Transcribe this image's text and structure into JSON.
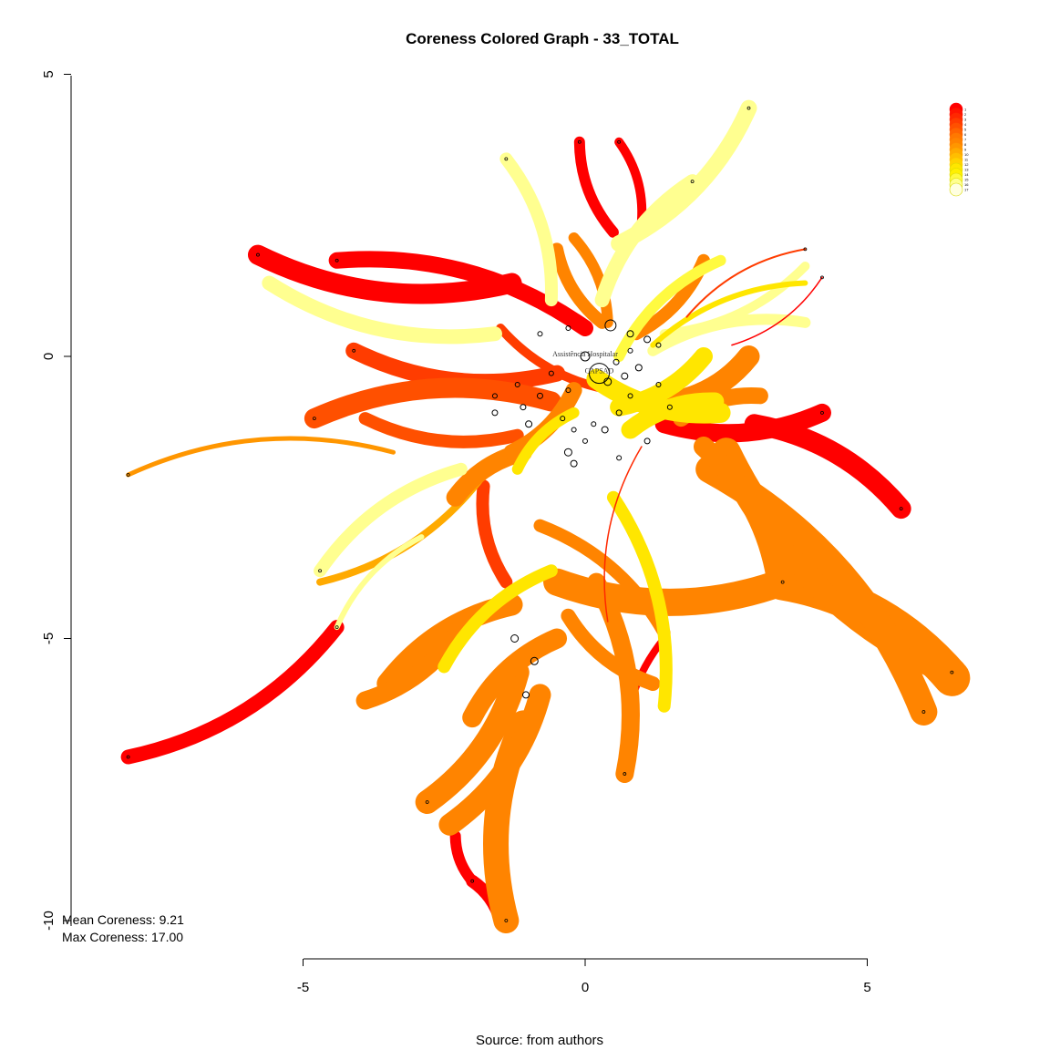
{
  "chart_data": {
    "type": "network",
    "title": "Coreness Colored Graph - 33_TOTAL",
    "caption": "Source: from authors",
    "xlim": [
      -5,
      5
    ],
    "ylim": [
      -10,
      5
    ],
    "x_ticks": [
      -5,
      0,
      5
    ],
    "y_ticks": [
      5,
      0,
      -5,
      -10
    ],
    "stats": {
      "mean_label": "Mean Coreness: 9.21",
      "max_label": "Max Coreness: 17.00",
      "mean_coreness": 9.21,
      "max_coreness": 17.0
    },
    "legend": {
      "placement": "top-right",
      "levels": [
        "1",
        "2",
        "3",
        "4",
        "5",
        "6",
        "7",
        "8",
        "9",
        "10",
        "11",
        "12",
        "13",
        "14",
        "15",
        "16",
        "17"
      ],
      "colors": [
        "#ff0000",
        "#ff1400",
        "#ff2800",
        "#ff3c00",
        "#ff5000",
        "#ff6400",
        "#ff7800",
        "#ff8400",
        "#ff9600",
        "#ffaa00",
        "#ffbe00",
        "#ffd200",
        "#ffe600",
        "#fff000",
        "#fffa40",
        "#ffff90",
        "#ffffe0"
      ]
    },
    "node_labels": [
      {
        "text": "CAPSAD",
        "x": 0.25,
        "y": -0.3
      },
      {
        "text": "Assistência Hospitalar",
        "x": 0.0,
        "y": 0.0
      }
    ],
    "edges": [
      {
        "from": [
          -5.8,
          1.8
        ],
        "to": [
          -1.3,
          1.3
        ],
        "width": 22,
        "coreness": 1
      },
      {
        "from": [
          -4.4,
          1.7
        ],
        "to": [
          0.0,
          0.5
        ],
        "width": 18,
        "coreness": 1
      },
      {
        "from": [
          -0.1,
          3.8
        ],
        "to": [
          0.5,
          2.2
        ],
        "width": 12,
        "coreness": 1
      },
      {
        "from": [
          0.6,
          3.8
        ],
        "to": [
          1.0,
          2.4
        ],
        "width": 10,
        "coreness": 1
      },
      {
        "from": [
          -8.1,
          -7.1
        ],
        "to": [
          -4.4,
          -4.8
        ],
        "width": 16,
        "coreness": 1
      },
      {
        "from": [
          4.2,
          -1.0
        ],
        "to": [
          1.4,
          -1.2
        ],
        "width": 20,
        "coreness": 1
      },
      {
        "from": [
          5.6,
          -2.7
        ],
        "to": [
          3.0,
          -1.2
        ],
        "width": 22,
        "coreness": 1
      },
      {
        "from": [
          -2.0,
          -9.3
        ],
        "to": [
          -1.5,
          -10.0
        ],
        "width": 14,
        "coreness": 1
      },
      {
        "from": [
          -2.3,
          -8.5
        ],
        "to": [
          -2.0,
          -9.3
        ],
        "width": 12,
        "coreness": 1
      },
      {
        "from": [
          0.7,
          -7.0
        ],
        "to": [
          1.4,
          -5.0
        ],
        "width": 8,
        "coreness": 1
      },
      {
        "from": [
          -4.1,
          0.1
        ],
        "to": [
          -0.5,
          -0.3
        ],
        "width": 18,
        "coreness": 4
      },
      {
        "from": [
          -4.8,
          -1.1
        ],
        "to": [
          -0.6,
          -0.8
        ],
        "width": 22,
        "coreness": 5
      },
      {
        "from": [
          -3.9,
          -1.1
        ],
        "to": [
          -1.2,
          -1.4
        ],
        "width": 14,
        "coreness": 5
      },
      {
        "from": [
          -1.4,
          -4.0
        ],
        "to": [
          -1.8,
          -2.3
        ],
        "width": 14,
        "coreness": 4
      },
      {
        "from": [
          -1.5,
          0.5
        ],
        "to": [
          0.5,
          -0.6
        ],
        "width": 10,
        "coreness": 4
      },
      {
        "from": [
          -8.1,
          -2.1
        ],
        "to": [
          -3.4,
          -1.7
        ],
        "width": 5,
        "coreness": 9
      },
      {
        "from": [
          -4.7,
          -4.0
        ],
        "to": [
          -1.8,
          -2.1
        ],
        "width": 8,
        "coreness": 10
      },
      {
        "from": [
          -4.4,
          -4.8
        ],
        "to": [
          -2.9,
          -3.2
        ],
        "width": 6,
        "coreness": 16
      },
      {
        "from": [
          6.5,
          -5.7
        ],
        "to": [
          3.5,
          -4.0
        ],
        "width": 40,
        "coreness": 8
      },
      {
        "from": [
          6.5,
          -5.6
        ],
        "to": [
          2.5,
          -1.7
        ],
        "width": 32,
        "coreness": 8
      },
      {
        "from": [
          6.0,
          -6.3
        ],
        "to": [
          2.2,
          -2.0
        ],
        "width": 30,
        "coreness": 8
      },
      {
        "from": [
          3.5,
          -4.0
        ],
        "to": [
          -0.5,
          -4.0
        ],
        "width": 30,
        "coreness": 8
      },
      {
        "from": [
          -2.8,
          -7.9
        ],
        "to": [
          -1.2,
          -5.6
        ],
        "width": 26,
        "coreness": 8
      },
      {
        "from": [
          -1.4,
          -10.0
        ],
        "to": [
          -1.1,
          -6.5
        ],
        "width": 28,
        "coreness": 8
      },
      {
        "from": [
          -2.4,
          -8.3
        ],
        "to": [
          -0.8,
          -6.0
        ],
        "width": 24,
        "coreness": 8
      },
      {
        "from": [
          -3.5,
          -5.8
        ],
        "to": [
          -1.3,
          -4.4
        ],
        "width": 24,
        "coreness": 8
      },
      {
        "from": [
          -3.9,
          -6.1
        ],
        "to": [
          -2.2,
          -4.8
        ],
        "width": 20,
        "coreness": 8
      },
      {
        "from": [
          -2.0,
          -6.4
        ],
        "to": [
          -0.5,
          -5.0
        ],
        "width": 22,
        "coreness": 8
      },
      {
        "from": [
          0.7,
          -7.4
        ],
        "to": [
          0.2,
          -4.0
        ],
        "width": 20,
        "coreness": 8
      },
      {
        "from": [
          1.2,
          -5.8
        ],
        "to": [
          -0.3,
          -4.6
        ],
        "width": 16,
        "coreness": 8
      },
      {
        "from": [
          1.4,
          -4.9
        ],
        "to": [
          -0.8,
          -3.0
        ],
        "width": 14,
        "coreness": 8
      },
      {
        "from": [
          -2.3,
          -2.5
        ],
        "to": [
          -1.1,
          -1.7
        ],
        "width": 20,
        "coreness": 8
      },
      {
        "from": [
          3.4,
          -4.0
        ],
        "to": [
          2.1,
          -1.6
        ],
        "width": 22,
        "coreness": 8
      },
      {
        "from": [
          2.9,
          0.0
        ],
        "to": [
          1.6,
          -0.8
        ],
        "width": 24,
        "coreness": 8
      },
      {
        "from": [
          3.1,
          -0.7
        ],
        "to": [
          1.7,
          -1.1
        ],
        "width": 18,
        "coreness": 8
      },
      {
        "from": [
          2.1,
          1.7
        ],
        "to": [
          0.9,
          0.4
        ],
        "width": 14,
        "coreness": 8
      },
      {
        "from": [
          -0.5,
          1.9
        ],
        "to": [
          0.3,
          0.6
        ],
        "width": 14,
        "coreness": 8
      },
      {
        "from": [
          -0.2,
          2.1
        ],
        "to": [
          0.4,
          0.6
        ],
        "width": 12,
        "coreness": 8
      },
      {
        "from": [
          -1.3,
          -1.7
        ],
        "to": [
          -0.2,
          -0.6
        ],
        "width": 18,
        "coreness": 8
      },
      {
        "from": [
          2.9,
          4.4
        ],
        "to": [
          0.6,
          2.0
        ],
        "width": 18,
        "coreness": 16
      },
      {
        "from": [
          1.9,
          3.1
        ],
        "to": [
          0.3,
          1.0
        ],
        "width": 16,
        "coreness": 16
      },
      {
        "from": [
          -1.4,
          3.5
        ],
        "to": [
          -0.6,
          1.0
        ],
        "width": 14,
        "coreness": 16
      },
      {
        "from": [
          -5.6,
          1.3
        ],
        "to": [
          -1.6,
          0.4
        ],
        "width": 16,
        "coreness": 16
      },
      {
        "from": [
          -4.7,
          -3.8
        ],
        "to": [
          -2.2,
          -2.0
        ],
        "width": 14,
        "coreness": 16
      },
      {
        "from": [
          3.9,
          0.6
        ],
        "to": [
          1.2,
          0.1
        ],
        "width": 12,
        "coreness": 16
      },
      {
        "from": [
          3.9,
          1.6
        ],
        "to": [
          1.4,
          0.4
        ],
        "width": 10,
        "coreness": 16
      },
      {
        "from": [
          2.4,
          1.7
        ],
        "to": [
          0.6,
          0.0
        ],
        "width": 12,
        "coreness": 15
      },
      {
        "from": [
          2.4,
          -1.0
        ],
        "to": [
          0.2,
          -0.4
        ],
        "width": 22,
        "coreness": 13
      },
      {
        "from": [
          2.3,
          -0.8
        ],
        "to": [
          0.8,
          -1.3
        ],
        "width": 20,
        "coreness": 13
      },
      {
        "from": [
          2.1,
          0.0
        ],
        "to": [
          0.6,
          -0.9
        ],
        "width": 20,
        "coreness": 13
      },
      {
        "from": [
          1.4,
          -6.2
        ],
        "to": [
          0.5,
          -2.5
        ],
        "width": 14,
        "coreness": 13
      },
      {
        "from": [
          -2.5,
          -5.5
        ],
        "to": [
          -0.6,
          -3.8
        ],
        "width": 14,
        "coreness": 13
      },
      {
        "from": [
          3.9,
          1.3
        ],
        "to": [
          1.2,
          0.2
        ],
        "width": 6,
        "coreness": 13
      },
      {
        "from": [
          -1.2,
          -2.0
        ],
        "to": [
          -0.2,
          -1.0
        ],
        "width": 12,
        "coreness": 13
      },
      {
        "from": [
          3.9,
          1.9
        ],
        "to": [
          1.8,
          0.7
        ],
        "width": 2,
        "coreness": 4
      },
      {
        "from": [
          4.2,
          1.4
        ],
        "to": [
          2.6,
          0.2
        ],
        "width": 1.5,
        "coreness": 1
      },
      {
        "from": [
          1.0,
          -1.6
        ],
        "to": [
          0.4,
          -4.7
        ],
        "width": 1.5,
        "coreness": 3
      }
    ],
    "nodes": [
      {
        "x": 0.25,
        "y": -0.3,
        "size": 22
      },
      {
        "x": 0.0,
        "y": 0.0,
        "size": 10
      },
      {
        "x": 0.45,
        "y": 0.55,
        "size": 12
      },
      {
        "x": 0.4,
        "y": -0.45,
        "size": 8
      },
      {
        "x": 0.55,
        "y": -0.1,
        "size": 6
      },
      {
        "x": 0.7,
        "y": -0.35,
        "size": 7
      },
      {
        "x": 0.95,
        "y": -0.2,
        "size": 7
      },
      {
        "x": 1.1,
        "y": 0.3,
        "size": 7
      },
      {
        "x": 0.8,
        "y": 0.1,
        "size": 5
      },
      {
        "x": -0.3,
        "y": -0.6,
        "size": 5
      },
      {
        "x": -0.6,
        "y": -0.3,
        "size": 5
      },
      {
        "x": -0.8,
        "y": -0.7,
        "size": 6
      },
      {
        "x": -1.1,
        "y": -0.9,
        "size": 6
      },
      {
        "x": -1.2,
        "y": -0.5,
        "size": 5
      },
      {
        "x": -1.0,
        "y": -1.2,
        "size": 7
      },
      {
        "x": -0.4,
        "y": -1.1,
        "size": 5
      },
      {
        "x": -0.2,
        "y": -1.3,
        "size": 5
      },
      {
        "x": -0.3,
        "y": -1.7,
        "size": 8
      },
      {
        "x": -0.2,
        "y": -1.9,
        "size": 7
      },
      {
        "x": 0.0,
        "y": -1.5,
        "size": 5
      },
      {
        "x": 0.15,
        "y": -1.2,
        "size": 5
      },
      {
        "x": 0.35,
        "y": -1.3,
        "size": 7
      },
      {
        "x": 0.6,
        "y": -1.0,
        "size": 6
      },
      {
        "x": 0.8,
        "y": -0.7,
        "size": 5
      },
      {
        "x": 1.3,
        "y": -0.5,
        "size": 5
      },
      {
        "x": 1.5,
        "y": -0.9,
        "size": 5
      },
      {
        "x": 1.1,
        "y": -1.5,
        "size": 6
      },
      {
        "x": 0.6,
        "y": -1.8,
        "size": 5
      },
      {
        "x": -1.6,
        "y": -0.7,
        "size": 5
      },
      {
        "x": -1.6,
        "y": -1.0,
        "size": 6
      },
      {
        "x": -0.8,
        "y": 0.4,
        "size": 5
      },
      {
        "x": -0.3,
        "y": 0.5,
        "size": 5
      },
      {
        "x": 0.8,
        "y": 0.4,
        "size": 7
      },
      {
        "x": 1.3,
        "y": 0.2,
        "size": 5
      },
      {
        "x": -1.25,
        "y": -5.0,
        "size": 8
      },
      {
        "x": -0.9,
        "y": -5.4,
        "size": 8
      },
      {
        "x": -1.05,
        "y": -6.0,
        "size": 7
      },
      {
        "x": -5.8,
        "y": 1.8,
        "size": 3
      },
      {
        "x": -4.4,
        "y": 1.7,
        "size": 3
      },
      {
        "x": -8.1,
        "y": -7.1,
        "size": 3
      },
      {
        "x": -8.1,
        "y": -2.1,
        "size": 3
      },
      {
        "x": 2.9,
        "y": 4.4,
        "size": 3
      },
      {
        "x": 1.9,
        "y": 3.1,
        "size": 3
      },
      {
        "x": -1.4,
        "y": 3.5,
        "size": 3
      },
      {
        "x": 4.2,
        "y": -1.0,
        "size": 3
      },
      {
        "x": 5.6,
        "y": -2.7,
        "size": 3
      },
      {
        "x": 6.5,
        "y": -5.6,
        "size": 3
      },
      {
        "x": 6.0,
        "y": -6.3,
        "size": 3
      },
      {
        "x": -1.4,
        "y": -10.0,
        "size": 3
      },
      {
        "x": -2.0,
        "y": -9.3,
        "size": 3
      },
      {
        "x": -4.4,
        "y": -4.8,
        "size": 3
      },
      {
        "x": -4.7,
        "y": -3.8,
        "size": 3
      },
      {
        "x": -4.8,
        "y": -1.1,
        "size": 3
      },
      {
        "x": -4.1,
        "y": 0.1,
        "size": 3
      },
      {
        "x": -2.8,
        "y": -7.9,
        "size": 3
      },
      {
        "x": 0.7,
        "y": -7.4,
        "size": 3
      },
      {
        "x": 3.9,
        "y": 1.9,
        "size": 3
      },
      {
        "x": 4.2,
        "y": 1.4,
        "size": 3
      },
      {
        "x": 3.5,
        "y": -4.0,
        "size": 3
      },
      {
        "x": -0.1,
        "y": 3.8,
        "size": 3
      },
      {
        "x": 0.6,
        "y": 3.8,
        "size": 3
      }
    ]
  }
}
